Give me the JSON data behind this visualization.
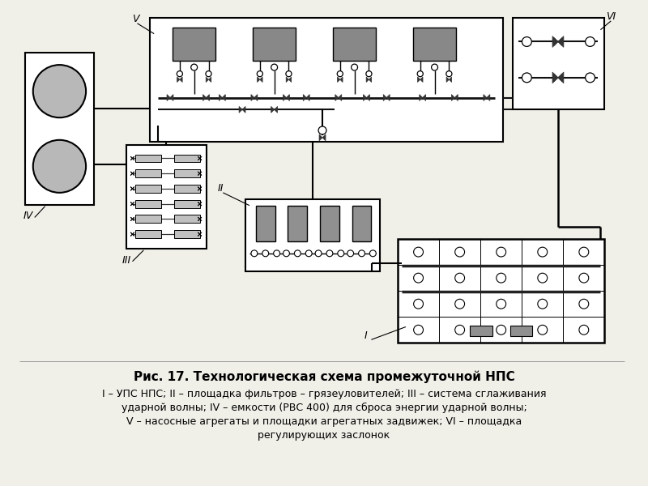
{
  "title_normal": "Рис. 17. ",
  "title_bold": "Технологическая схема промежуточной НПС",
  "caption_line1": "I – УПС НПС; II – площадка фильтров – грязеуловителей; III – система сглаживания",
  "caption_line2": "ударной волны; IV – емкости (РВС 400) для сброса энергии ударной волны;",
  "caption_line3": "V – насосные агрегаты и площадки агрегатных задвижек; VI – площадка",
  "caption_line4": "регулирующих заслонок",
  "bg_color": "#f0efe8",
  "label_IV": "IV",
  "label_III": "III",
  "label_II": "II",
  "label_I": "I",
  "label_V": "V",
  "label_VI": "VI"
}
